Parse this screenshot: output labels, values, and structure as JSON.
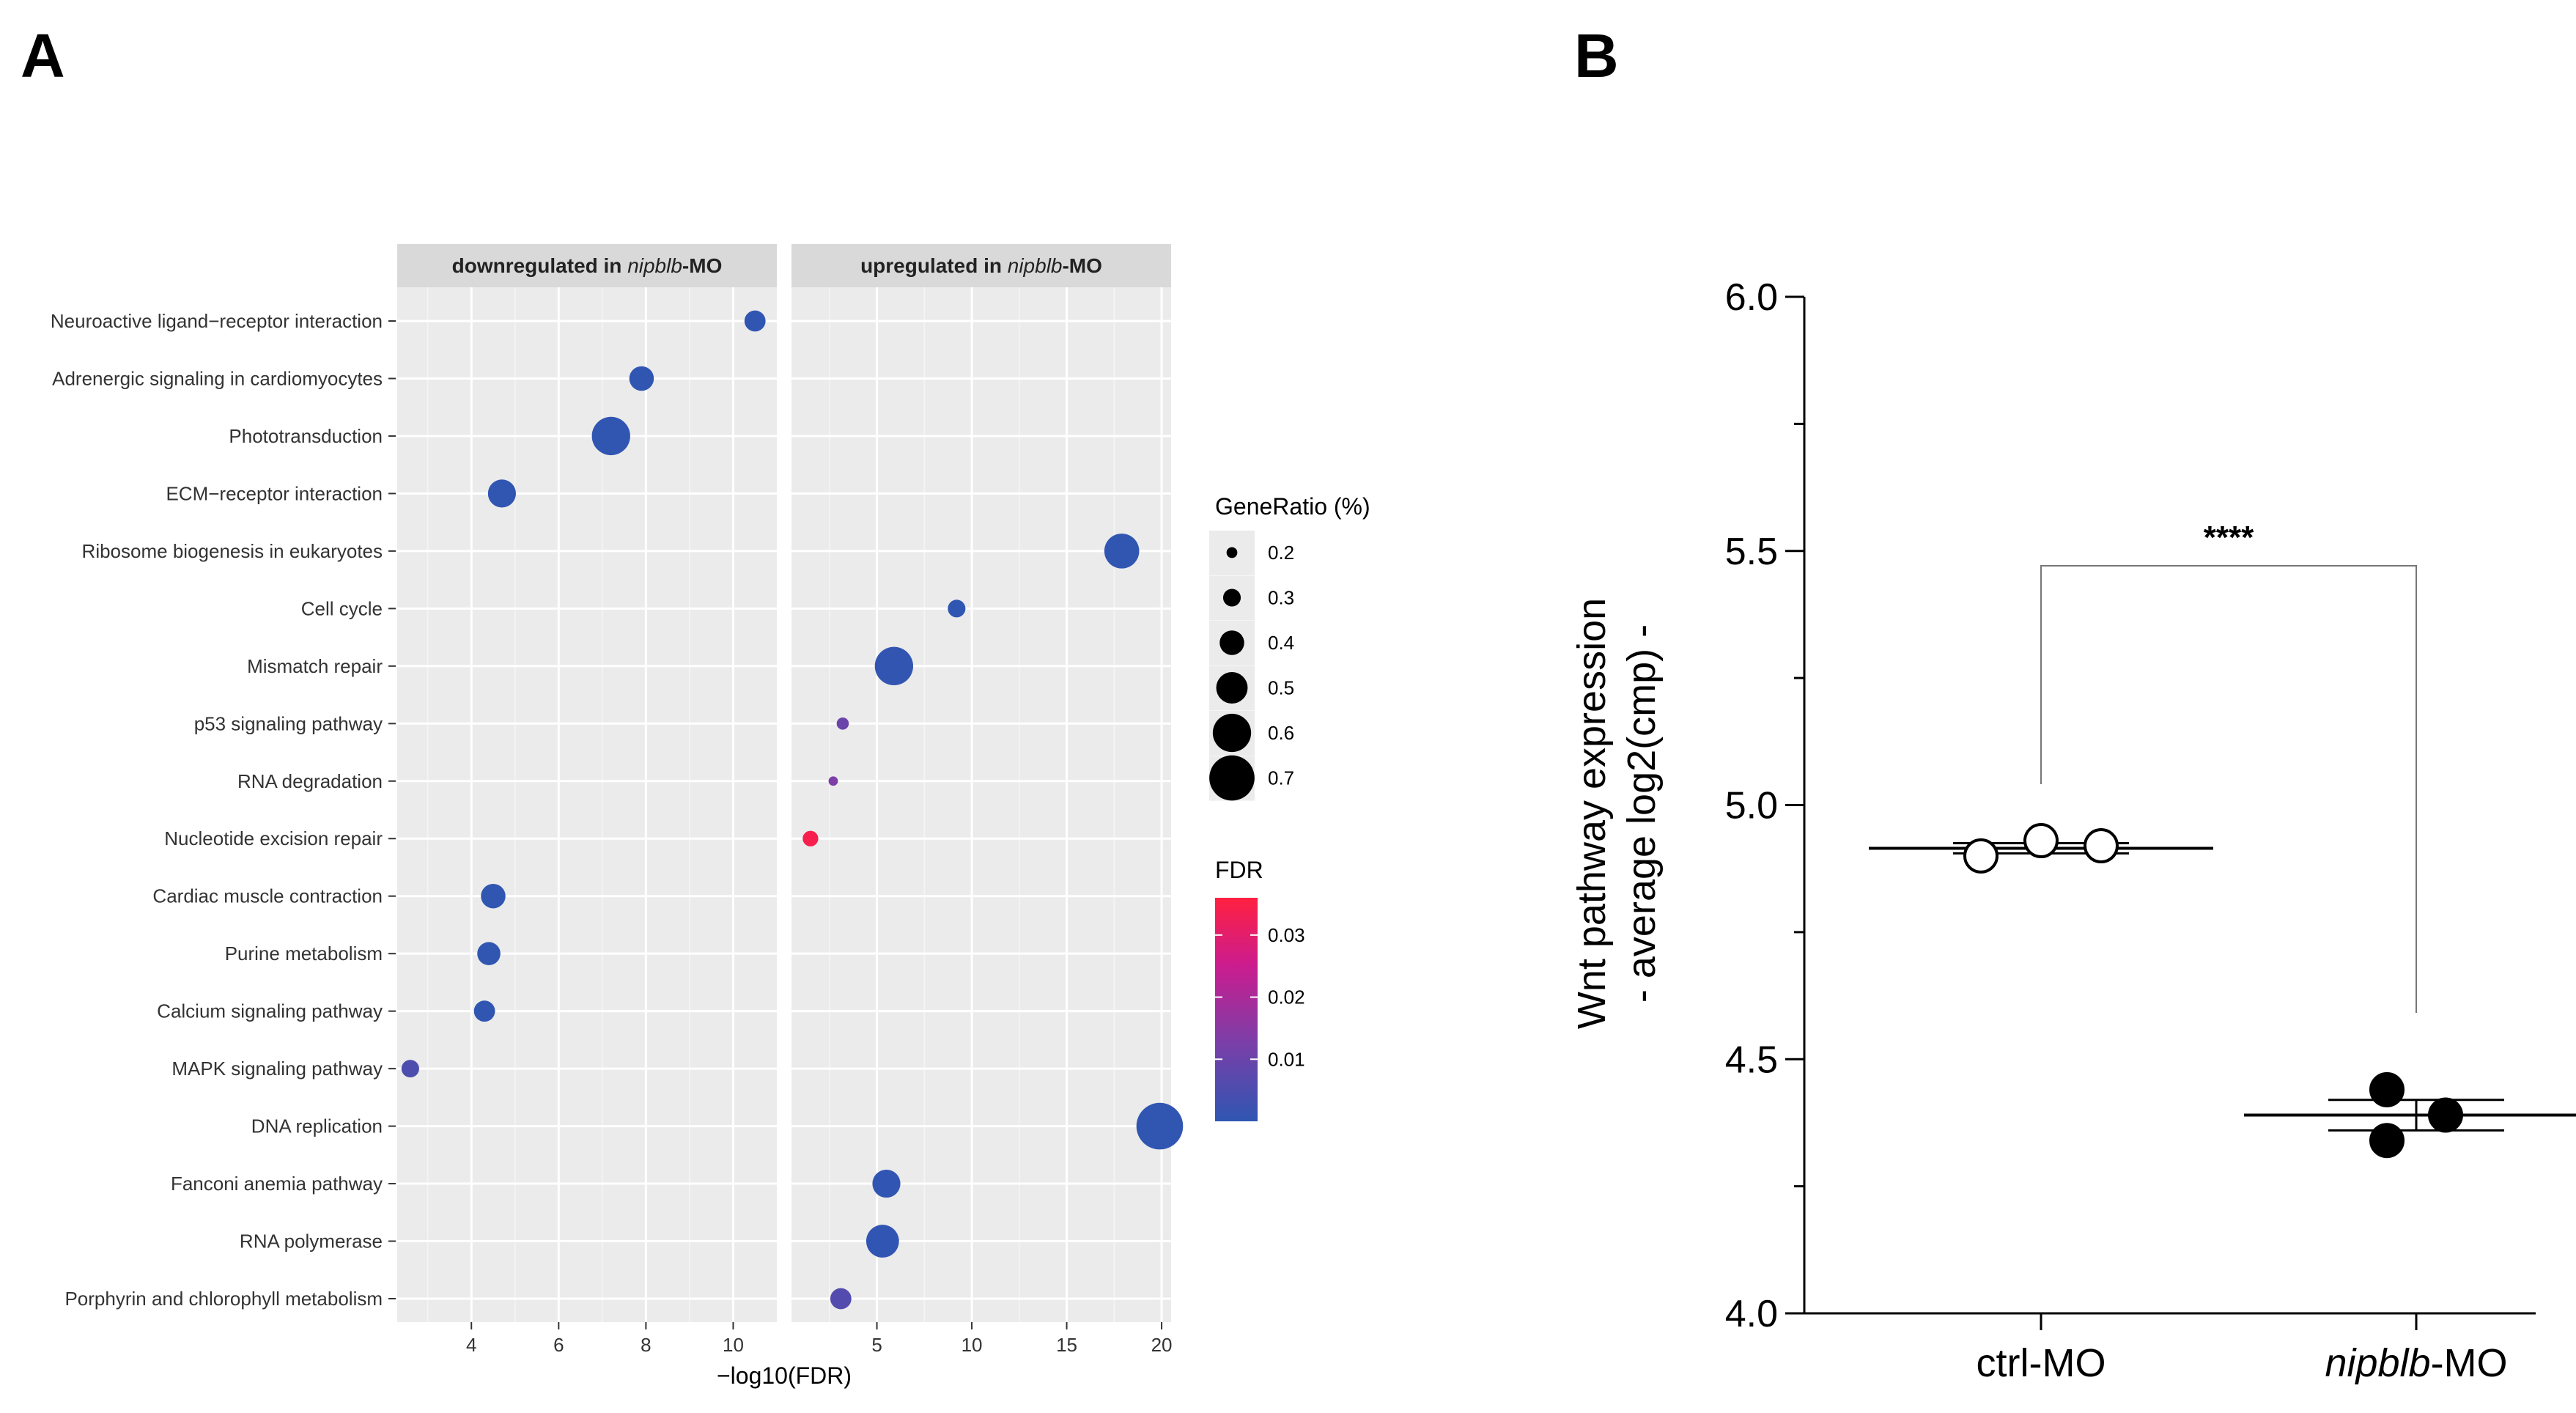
{
  "panels": {
    "a_label": "A",
    "b_label": "B"
  },
  "chart_data": [
    {
      "type": "scatter",
      "panel": "A",
      "facets": [
        {
          "label_prefix": "downregulated in ",
          "label_italic": "nipblb",
          "label_suffix": "-MO"
        },
        {
          "label_prefix": "upregulated in ",
          "label_italic": "nipblb",
          "label_suffix": "-MO"
        }
      ],
      "xlabel": "−log10(FDR)",
      "facet_axes": [
        {
          "xlim": [
            2.3,
            11.0
          ],
          "ticks": [
            4,
            6,
            8,
            10
          ],
          "tick_labels": [
            "4",
            "6",
            "8",
            "10"
          ]
        },
        {
          "xlim": [
            0.5,
            20.5
          ],
          "ticks": [
            5,
            10,
            15,
            20
          ],
          "tick_labels": [
            "5",
            "10",
            "15",
            "20"
          ]
        }
      ],
      "categories": [
        "Neuroactive ligand−receptor interaction",
        "Adrenergic signaling in cardiomyocytes",
        "Phototransduction",
        "ECM−receptor interaction",
        "Ribosome biogenesis in eukaryotes",
        "Cell cycle",
        "Mismatch repair",
        "p53 signaling pathway",
        "RNA degradation",
        "Nucleotide excision repair",
        "Cardiac muscle contraction",
        "Purine metabolism",
        "Calcium signaling pathway",
        "MAPK signaling pathway",
        "DNA replication",
        "Fanconi anemia pathway",
        "RNA polymerase",
        "Porphyrin and chlorophyll metabolism"
      ],
      "points": [
        {
          "category": "Neuroactive ligand−receptor interaction",
          "facet": 0,
          "x": 10.5,
          "gene_ratio": 0.35,
          "fdr": 0.0001
        },
        {
          "category": "Adrenergic signaling in cardiomyocytes",
          "facet": 0,
          "x": 7.9,
          "gene_ratio": 0.4,
          "fdr": 0.0001
        },
        {
          "category": "Phototransduction",
          "facet": 0,
          "x": 7.2,
          "gene_ratio": 0.6,
          "fdr": 0.0001
        },
        {
          "category": "ECM−receptor interaction",
          "facet": 0,
          "x": 4.7,
          "gene_ratio": 0.45,
          "fdr": 0.0001
        },
        {
          "category": "Ribosome biogenesis in eukaryotes",
          "facet": 1,
          "x": 17.9,
          "gene_ratio": 0.55,
          "fdr": 0.0001
        },
        {
          "category": "Cell cycle",
          "facet": 1,
          "x": 9.2,
          "gene_ratio": 0.3,
          "fdr": 0.0001
        },
        {
          "category": "Mismatch repair",
          "facet": 1,
          "x": 5.9,
          "gene_ratio": 0.6,
          "fdr": 0.0005
        },
        {
          "category": "p53 signaling pathway",
          "facet": 1,
          "x": 3.2,
          "gene_ratio": 0.22,
          "fdr": 0.01
        },
        {
          "category": "RNA degradation",
          "facet": 1,
          "x": 2.7,
          "gene_ratio": 0.18,
          "fdr": 0.013
        },
        {
          "category": "Nucleotide excision repair",
          "facet": 1,
          "x": 1.5,
          "gene_ratio": 0.27,
          "fdr": 0.034
        },
        {
          "category": "Cardiac muscle contraction",
          "facet": 0,
          "x": 4.5,
          "gene_ratio": 0.4,
          "fdr": 0.0001
        },
        {
          "category": "Purine metabolism",
          "facet": 0,
          "x": 4.4,
          "gene_ratio": 0.38,
          "fdr": 0.0001
        },
        {
          "category": "Calcium signaling pathway",
          "facet": 0,
          "x": 4.3,
          "gene_ratio": 0.35,
          "fdr": 0.0002
        },
        {
          "category": "MAPK signaling pathway",
          "facet": 0,
          "x": 2.6,
          "gene_ratio": 0.3,
          "fdr": 0.005
        },
        {
          "category": "DNA replication",
          "facet": 1,
          "x": 19.9,
          "gene_ratio": 0.72,
          "fdr": 0.0001
        },
        {
          "category": "Fanconi anemia pathway",
          "facet": 1,
          "x": 5.5,
          "gene_ratio": 0.45,
          "fdr": 0.0003
        },
        {
          "category": "RNA polymerase",
          "facet": 1,
          "x": 5.3,
          "gene_ratio": 0.52,
          "fdr": 0.0003
        },
        {
          "category": "Porphyrin and chlorophyll metabolism",
          "facet": 1,
          "x": 3.1,
          "gene_ratio": 0.35,
          "fdr": 0.006
        }
      ],
      "legend_size": {
        "title": "GeneRatio (%)",
        "values": [
          0.2,
          0.3,
          0.4,
          0.5,
          0.6,
          0.7
        ],
        "labels": [
          "0.2",
          "0.3",
          "0.4",
          "0.5",
          "0.6",
          "0.7"
        ]
      },
      "legend_color": {
        "title": "FDR",
        "range": [
          0.0,
          0.036
        ],
        "ticks": [
          0.03,
          0.02,
          0.01
        ],
        "tick_labels": [
          "0.03",
          "0.02",
          "0.01"
        ],
        "colors": [
          "#2f56b2",
          "#7a3fa8",
          "#cc1c8e",
          "#ff2040"
        ]
      },
      "point_color_low": "#2f56b2",
      "point_color_high": "#ff2040",
      "panel_bg": "#ebebeb",
      "strip_bg": "#d9d9d9"
    },
    {
      "type": "scatter",
      "panel": "B",
      "ylabel_line1": "Wnt pathway expression",
      "ylabel_line2": "- average log2(cmp) -",
      "ylim": [
        4.0,
        6.0
      ],
      "yticks": [
        4.0,
        4.5,
        5.0,
        5.5,
        6.0
      ],
      "ytick_labels": [
        "4.0",
        "4.5",
        "5.0",
        "5.5",
        "6.0"
      ],
      "groups": [
        {
          "name": "ctrl-MO",
          "name_italic": "",
          "name_suffix": "",
          "values": [
            4.9,
            4.93,
            4.92
          ],
          "mean": 4.915,
          "sem": 0.01,
          "fill": "#ffffff"
        },
        {
          "name": "",
          "name_italic": "nipblb",
          "name_suffix": "-MO",
          "values": [
            4.44,
            4.39,
            4.34
          ],
          "mean": 4.39,
          "sem": 0.03,
          "fill": "#000000"
        }
      ],
      "significance": "****"
    }
  ]
}
